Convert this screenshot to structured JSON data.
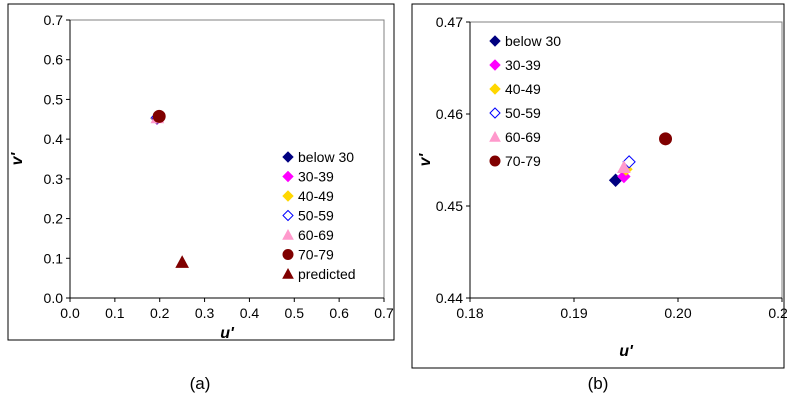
{
  "chart_data": [
    {
      "type": "scatter",
      "panel_label": "(a)",
      "xlabel": "u'",
      "ylabel": "v'",
      "xlim": [
        0.0,
        0.7
      ],
      "ylim": [
        0.0,
        0.7
      ],
      "xticks": [
        "0.0",
        "0.1",
        "0.2",
        "0.3",
        "0.4",
        "0.5",
        "0.6",
        "0.7"
      ],
      "yticks": [
        "0.0",
        "0.1",
        "0.2",
        "0.3",
        "0.4",
        "0.5",
        "0.6",
        "0.7"
      ],
      "grid": false,
      "legend_position": "right",
      "series": [
        {
          "name": "below 30",
          "marker": "diamond",
          "color": "#000080",
          "filled": true,
          "x": [
            0.194
          ],
          "y": [
            0.4528
          ]
        },
        {
          "name": "30-39",
          "marker": "diamond",
          "color": "#FF00FF",
          "filled": true,
          "x": [
            0.1948
          ],
          "y": [
            0.4532
          ]
        },
        {
          "name": "40-49",
          "marker": "diamond",
          "color": "#FFD700",
          "filled": true,
          "x": [
            0.195
          ],
          "y": [
            0.454
          ]
        },
        {
          "name": "50-59",
          "marker": "diamond",
          "color": "#0000FF",
          "filled": false,
          "x": [
            0.1953
          ],
          "y": [
            0.4548
          ]
        },
        {
          "name": "60-69",
          "marker": "triangle",
          "color": "#FF99CC",
          "filled": true,
          "x": [
            0.1948
          ],
          "y": [
            0.4542
          ]
        },
        {
          "name": "70-79",
          "marker": "circle",
          "color": "#800000",
          "filled": true,
          "x": [
            0.1988
          ],
          "y": [
            0.4573
          ]
        },
        {
          "name": "predicted",
          "marker": "triangle",
          "color": "#800000",
          "filled": true,
          "x": [
            0.25
          ],
          "y": [
            0.09
          ]
        }
      ]
    },
    {
      "type": "scatter",
      "panel_label": "(b)",
      "xlabel": "u'",
      "ylabel": "v'",
      "xlim": [
        0.18,
        0.21
      ],
      "ylim": [
        0.44,
        0.47
      ],
      "xticks": [
        "0.18",
        "0.19",
        "0.20",
        "0.21"
      ],
      "yticks": [
        "0.44",
        "0.45",
        "0.46",
        "0.47"
      ],
      "grid": false,
      "legend_position": "top-left",
      "series": [
        {
          "name": "below 30",
          "marker": "diamond",
          "color": "#000080",
          "filled": true,
          "x": [
            0.194
          ],
          "y": [
            0.4528
          ]
        },
        {
          "name": "30-39",
          "marker": "diamond",
          "color": "#FF00FF",
          "filled": true,
          "x": [
            0.1948
          ],
          "y": [
            0.4532
          ]
        },
        {
          "name": "40-49",
          "marker": "diamond",
          "color": "#FFD700",
          "filled": true,
          "x": [
            0.195
          ],
          "y": [
            0.454
          ]
        },
        {
          "name": "50-59",
          "marker": "diamond",
          "color": "#0000FF",
          "filled": false,
          "x": [
            0.1953
          ],
          "y": [
            0.4548
          ]
        },
        {
          "name": "60-69",
          "marker": "triangle",
          "color": "#FF99CC",
          "filled": true,
          "x": [
            0.1948
          ],
          "y": [
            0.4542
          ]
        },
        {
          "name": "70-79",
          "marker": "circle",
          "color": "#800000",
          "filled": true,
          "x": [
            0.1988
          ],
          "y": [
            0.4573
          ]
        }
      ]
    }
  ]
}
